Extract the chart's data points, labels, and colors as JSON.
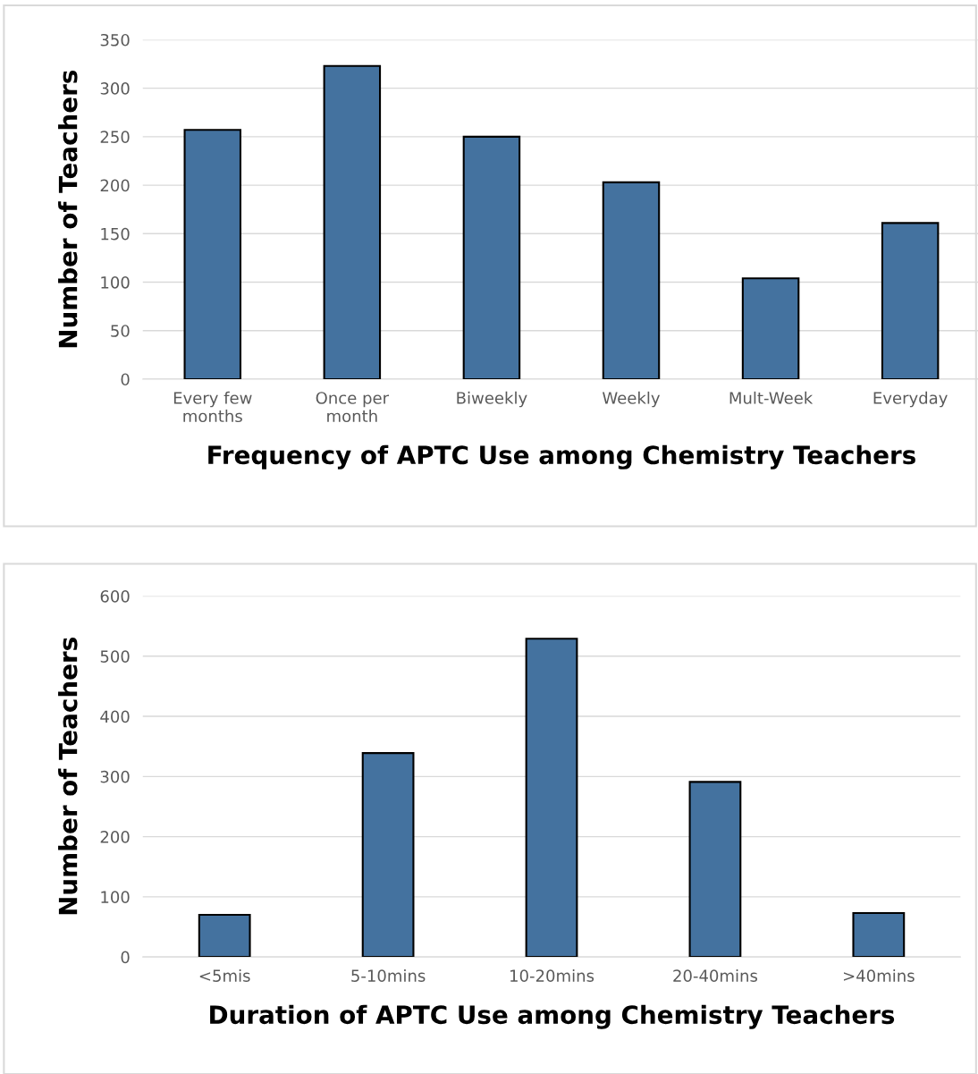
{
  "chart_data": [
    {
      "type": "bar",
      "categories": [
        "Every few\nmonths",
        "Once per\nmonth",
        "Biweekly",
        "Weekly",
        "Mult-Week",
        "Everyday"
      ],
      "values": [
        257,
        323,
        250,
        203,
        104,
        161
      ],
      "color": "#44729f",
      "xlabel": "Frequency of APTC Use among Chemistry Teachers",
      "ylabel": "Number of Teachers",
      "ylim": [
        0,
        350
      ],
      "yticks": [
        0,
        50,
        100,
        150,
        200,
        250,
        300,
        350
      ],
      "grid": "y"
    },
    {
      "type": "bar",
      "categories": [
        "<5mis",
        "5-10mins",
        "10-20mins",
        "20-40mins",
        ">40mins"
      ],
      "values": [
        70,
        339,
        529,
        291,
        73
      ],
      "color": "#44729f",
      "xlabel": "Duration of APTC Use among Chemistry Teachers",
      "ylabel": "Number of Teachers",
      "ylim": [
        0,
        600
      ],
      "yticks": [
        0,
        100,
        200,
        300,
        400,
        500,
        600
      ],
      "grid": "y"
    }
  ]
}
